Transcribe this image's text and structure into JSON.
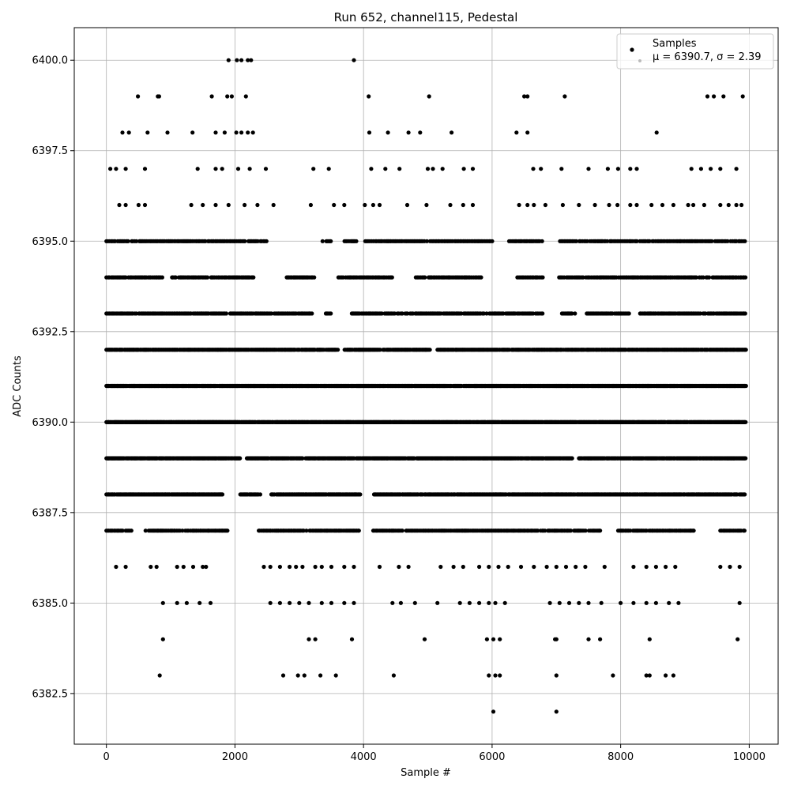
{
  "chart_data": {
    "type": "scatter",
    "title": "Run 652, channel115, Pedestal",
    "xlabel": "Sample #",
    "ylabel": "ADC Counts",
    "xlim": [
      -500,
      10450
    ],
    "ylim": [
      6381.1,
      6400.9
    ],
    "xticks": [
      0,
      2000,
      4000,
      6000,
      8000,
      10000
    ],
    "xtick_labels": [
      "0",
      "2000",
      "4000",
      "6000",
      "8000",
      "10000"
    ],
    "yticks": [
      6382.5,
      6385.0,
      6387.5,
      6390.0,
      6392.5,
      6395.0,
      6397.5,
      6400.0
    ],
    "ytick_labels": [
      "6382.5",
      "6385.0",
      "6387.5",
      "6390.0",
      "6392.5",
      "6395.0",
      "6397.5",
      "6400.0"
    ],
    "grid": true,
    "legend_position": "top-right",
    "series": [
      {
        "name": "Samples",
        "color": "#000000",
        "x_range": [
          0,
          9950
        ],
        "mean": 6390.7,
        "sigma": 2.39
      }
    ],
    "legend_stats": "μ = 6390.7, σ = 2.39",
    "sparse_points": [
      {
        "x": 1900,
        "y": 6400
      },
      {
        "x": 2030,
        "y": 6400
      },
      {
        "x": 2100,
        "y": 6400
      },
      {
        "x": 2200,
        "y": 6400
      },
      {
        "x": 2250,
        "y": 6400
      },
      {
        "x": 3850,
        "y": 6400
      },
      {
        "x": 490,
        "y": 6399
      },
      {
        "x": 800,
        "y": 6399
      },
      {
        "x": 820,
        "y": 6399
      },
      {
        "x": 1640,
        "y": 6399
      },
      {
        "x": 1880,
        "y": 6399
      },
      {
        "x": 1950,
        "y": 6399
      },
      {
        "x": 2170,
        "y": 6399
      },
      {
        "x": 4080,
        "y": 6399
      },
      {
        "x": 5020,
        "y": 6399
      },
      {
        "x": 6500,
        "y": 6399
      },
      {
        "x": 6550,
        "y": 6399
      },
      {
        "x": 7130,
        "y": 6399
      },
      {
        "x": 9350,
        "y": 6399
      },
      {
        "x": 9450,
        "y": 6399
      },
      {
        "x": 9600,
        "y": 6399
      },
      {
        "x": 9900,
        "y": 6399
      },
      {
        "x": 250,
        "y": 6398
      },
      {
        "x": 350,
        "y": 6398
      },
      {
        "x": 640,
        "y": 6398
      },
      {
        "x": 950,
        "y": 6398
      },
      {
        "x": 1340,
        "y": 6398
      },
      {
        "x": 1700,
        "y": 6398
      },
      {
        "x": 1840,
        "y": 6398
      },
      {
        "x": 2020,
        "y": 6398
      },
      {
        "x": 2100,
        "y": 6398
      },
      {
        "x": 2200,
        "y": 6398
      },
      {
        "x": 2280,
        "y": 6398
      },
      {
        "x": 4090,
        "y": 6398
      },
      {
        "x": 4380,
        "y": 6398
      },
      {
        "x": 4700,
        "y": 6398
      },
      {
        "x": 4880,
        "y": 6398
      },
      {
        "x": 5370,
        "y": 6398
      },
      {
        "x": 6380,
        "y": 6398
      },
      {
        "x": 6550,
        "y": 6398
      },
      {
        "x": 8560,
        "y": 6398
      },
      {
        "x": 60,
        "y": 6397
      },
      {
        "x": 150,
        "y": 6397
      },
      {
        "x": 300,
        "y": 6397
      },
      {
        "x": 600,
        "y": 6397
      },
      {
        "x": 1420,
        "y": 6397
      },
      {
        "x": 1700,
        "y": 6397
      },
      {
        "x": 1800,
        "y": 6397
      },
      {
        "x": 2050,
        "y": 6397
      },
      {
        "x": 2230,
        "y": 6397
      },
      {
        "x": 2480,
        "y": 6397
      },
      {
        "x": 3220,
        "y": 6397
      },
      {
        "x": 3460,
        "y": 6397
      },
      {
        "x": 4120,
        "y": 6397
      },
      {
        "x": 4340,
        "y": 6397
      },
      {
        "x": 4560,
        "y": 6397
      },
      {
        "x": 5000,
        "y": 6397
      },
      {
        "x": 5080,
        "y": 6397
      },
      {
        "x": 5230,
        "y": 6397
      },
      {
        "x": 5560,
        "y": 6397
      },
      {
        "x": 5700,
        "y": 6397
      },
      {
        "x": 6640,
        "y": 6397
      },
      {
        "x": 6760,
        "y": 6397
      },
      {
        "x": 7080,
        "y": 6397
      },
      {
        "x": 7500,
        "y": 6397
      },
      {
        "x": 7800,
        "y": 6397
      },
      {
        "x": 7960,
        "y": 6397
      },
      {
        "x": 8150,
        "y": 6397
      },
      {
        "x": 8250,
        "y": 6397
      },
      {
        "x": 9100,
        "y": 6397
      },
      {
        "x": 9250,
        "y": 6397
      },
      {
        "x": 9400,
        "y": 6397
      },
      {
        "x": 9550,
        "y": 6397
      },
      {
        "x": 9800,
        "y": 6397
      },
      {
        "x": 200,
        "y": 6396
      },
      {
        "x": 300,
        "y": 6396
      },
      {
        "x": 500,
        "y": 6396
      },
      {
        "x": 600,
        "y": 6396
      },
      {
        "x": 1320,
        "y": 6396
      },
      {
        "x": 1500,
        "y": 6396
      },
      {
        "x": 1700,
        "y": 6396
      },
      {
        "x": 1900,
        "y": 6396
      },
      {
        "x": 2150,
        "y": 6396
      },
      {
        "x": 2350,
        "y": 6396
      },
      {
        "x": 2600,
        "y": 6396
      },
      {
        "x": 3180,
        "y": 6396
      },
      {
        "x": 3540,
        "y": 6396
      },
      {
        "x": 3700,
        "y": 6396
      },
      {
        "x": 4020,
        "y": 6396
      },
      {
        "x": 4150,
        "y": 6396
      },
      {
        "x": 4250,
        "y": 6396
      },
      {
        "x": 4680,
        "y": 6396
      },
      {
        "x": 4980,
        "y": 6396
      },
      {
        "x": 5350,
        "y": 6396
      },
      {
        "x": 5550,
        "y": 6396
      },
      {
        "x": 5700,
        "y": 6396
      },
      {
        "x": 6420,
        "y": 6396
      },
      {
        "x": 6550,
        "y": 6396
      },
      {
        "x": 6650,
        "y": 6396
      },
      {
        "x": 6830,
        "y": 6396
      },
      {
        "x": 7100,
        "y": 6396
      },
      {
        "x": 7350,
        "y": 6396
      },
      {
        "x": 7600,
        "y": 6396
      },
      {
        "x": 7820,
        "y": 6396
      },
      {
        "x": 7950,
        "y": 6396
      },
      {
        "x": 8150,
        "y": 6396
      },
      {
        "x": 8250,
        "y": 6396
      },
      {
        "x": 8480,
        "y": 6396
      },
      {
        "x": 8650,
        "y": 6396
      },
      {
        "x": 8820,
        "y": 6396
      },
      {
        "x": 9050,
        "y": 6396
      },
      {
        "x": 9130,
        "y": 6396
      },
      {
        "x": 9300,
        "y": 6396
      },
      {
        "x": 9550,
        "y": 6396
      },
      {
        "x": 9680,
        "y": 6396
      },
      {
        "x": 9800,
        "y": 6396
      },
      {
        "x": 9880,
        "y": 6396
      },
      {
        "x": 150,
        "y": 6386
      },
      {
        "x": 300,
        "y": 6386
      },
      {
        "x": 690,
        "y": 6386
      },
      {
        "x": 780,
        "y": 6386
      },
      {
        "x": 1100,
        "y": 6386
      },
      {
        "x": 1200,
        "y": 6386
      },
      {
        "x": 1350,
        "y": 6386
      },
      {
        "x": 1500,
        "y": 6386
      },
      {
        "x": 1550,
        "y": 6386
      },
      {
        "x": 2450,
        "y": 6386
      },
      {
        "x": 2550,
        "y": 6386
      },
      {
        "x": 2700,
        "y": 6386
      },
      {
        "x": 2850,
        "y": 6386
      },
      {
        "x": 2950,
        "y": 6386
      },
      {
        "x": 3050,
        "y": 6386
      },
      {
        "x": 3250,
        "y": 6386
      },
      {
        "x": 3350,
        "y": 6386
      },
      {
        "x": 3500,
        "y": 6386
      },
      {
        "x": 3700,
        "y": 6386
      },
      {
        "x": 3850,
        "y": 6386
      },
      {
        "x": 4250,
        "y": 6386
      },
      {
        "x": 4550,
        "y": 6386
      },
      {
        "x": 4700,
        "y": 6386
      },
      {
        "x": 5200,
        "y": 6386
      },
      {
        "x": 5400,
        "y": 6386
      },
      {
        "x": 5550,
        "y": 6386
      },
      {
        "x": 5800,
        "y": 6386
      },
      {
        "x": 5950,
        "y": 6386
      },
      {
        "x": 6100,
        "y": 6386
      },
      {
        "x": 6250,
        "y": 6386
      },
      {
        "x": 6450,
        "y": 6386
      },
      {
        "x": 6650,
        "y": 6386
      },
      {
        "x": 6850,
        "y": 6386
      },
      {
        "x": 7000,
        "y": 6386
      },
      {
        "x": 7150,
        "y": 6386
      },
      {
        "x": 7300,
        "y": 6386
      },
      {
        "x": 7450,
        "y": 6386
      },
      {
        "x": 7750,
        "y": 6386
      },
      {
        "x": 8200,
        "y": 6386
      },
      {
        "x": 8400,
        "y": 6386
      },
      {
        "x": 8550,
        "y": 6386
      },
      {
        "x": 8700,
        "y": 6386
      },
      {
        "x": 8850,
        "y": 6386
      },
      {
        "x": 9550,
        "y": 6386
      },
      {
        "x": 9700,
        "y": 6386
      },
      {
        "x": 9850,
        "y": 6386
      },
      {
        "x": 880,
        "y": 6385
      },
      {
        "x": 1100,
        "y": 6385
      },
      {
        "x": 1250,
        "y": 6385
      },
      {
        "x": 1450,
        "y": 6385
      },
      {
        "x": 1620,
        "y": 6385
      },
      {
        "x": 2550,
        "y": 6385
      },
      {
        "x": 2700,
        "y": 6385
      },
      {
        "x": 2850,
        "y": 6385
      },
      {
        "x": 3000,
        "y": 6385
      },
      {
        "x": 3150,
        "y": 6385
      },
      {
        "x": 3350,
        "y": 6385
      },
      {
        "x": 3500,
        "y": 6385
      },
      {
        "x": 3700,
        "y": 6385
      },
      {
        "x": 3850,
        "y": 6385
      },
      {
        "x": 4450,
        "y": 6385
      },
      {
        "x": 4580,
        "y": 6385
      },
      {
        "x": 4800,
        "y": 6385
      },
      {
        "x": 5150,
        "y": 6385
      },
      {
        "x": 5500,
        "y": 6385
      },
      {
        "x": 5650,
        "y": 6385
      },
      {
        "x": 5800,
        "y": 6385
      },
      {
        "x": 5950,
        "y": 6385
      },
      {
        "x": 6050,
        "y": 6385
      },
      {
        "x": 6200,
        "y": 6385
      },
      {
        "x": 6900,
        "y": 6385
      },
      {
        "x": 7050,
        "y": 6385
      },
      {
        "x": 7200,
        "y": 6385
      },
      {
        "x": 7350,
        "y": 6385
      },
      {
        "x": 7500,
        "y": 6385
      },
      {
        "x": 7700,
        "y": 6385
      },
      {
        "x": 8000,
        "y": 6385
      },
      {
        "x": 8200,
        "y": 6385
      },
      {
        "x": 8400,
        "y": 6385
      },
      {
        "x": 8550,
        "y": 6385
      },
      {
        "x": 8750,
        "y": 6385
      },
      {
        "x": 8900,
        "y": 6385
      },
      {
        "x": 9850,
        "y": 6385
      },
      {
        "x": 880,
        "y": 6384
      },
      {
        "x": 3150,
        "y": 6384
      },
      {
        "x": 3250,
        "y": 6384
      },
      {
        "x": 3820,
        "y": 6384
      },
      {
        "x": 4950,
        "y": 6384
      },
      {
        "x": 5920,
        "y": 6384
      },
      {
        "x": 6020,
        "y": 6384
      },
      {
        "x": 6120,
        "y": 6384
      },
      {
        "x": 6980,
        "y": 6384
      },
      {
        "x": 7000,
        "y": 6384
      },
      {
        "x": 7500,
        "y": 6384
      },
      {
        "x": 7680,
        "y": 6384
      },
      {
        "x": 8450,
        "y": 6384
      },
      {
        "x": 9820,
        "y": 6384
      },
      {
        "x": 830,
        "y": 6383
      },
      {
        "x": 2750,
        "y": 6383
      },
      {
        "x": 2980,
        "y": 6383
      },
      {
        "x": 3080,
        "y": 6383
      },
      {
        "x": 3330,
        "y": 6383
      },
      {
        "x": 3570,
        "y": 6383
      },
      {
        "x": 4470,
        "y": 6383
      },
      {
        "x": 5950,
        "y": 6383
      },
      {
        "x": 6050,
        "y": 6383
      },
      {
        "x": 6120,
        "y": 6383
      },
      {
        "x": 7000,
        "y": 6383
      },
      {
        "x": 7880,
        "y": 6383
      },
      {
        "x": 8400,
        "y": 6383
      },
      {
        "x": 8450,
        "y": 6383
      },
      {
        "x": 8700,
        "y": 6383
      },
      {
        "x": 8820,
        "y": 6383
      },
      {
        "x": 6020,
        "y": 6382
      },
      {
        "x": 7000,
        "y": 6382
      }
    ],
    "dense_bands": [
      {
        "y": 6395,
        "gaps": [
          [
            2500,
            3350
          ],
          [
            3500,
            3700
          ],
          [
            3900,
            4020
          ],
          [
            6020,
            6260
          ],
          [
            6800,
            7050
          ]
        ],
        "stride": 22
      },
      {
        "y": 6394,
        "gaps": [
          [
            880,
            1020
          ],
          [
            2300,
            2800
          ],
          [
            3250,
            3600
          ],
          [
            4450,
            4800
          ],
          [
            5850,
            6380
          ],
          [
            6800,
            7020
          ]
        ],
        "stride": 22
      },
      {
        "y": 6393,
        "gaps": [
          [
            3200,
            3400
          ],
          [
            3500,
            3800
          ],
          [
            6800,
            7080
          ],
          [
            7300,
            7450
          ],
          [
            8150,
            8300
          ]
        ],
        "stride": 18
      },
      {
        "y": 6392,
        "gaps": [
          [
            3600,
            3700
          ],
          [
            5050,
            5150
          ]
        ],
        "stride": 12
      },
      {
        "y": 6391,
        "gaps": [],
        "stride": 8
      },
      {
        "y": 6390,
        "gaps": [],
        "stride": 7
      },
      {
        "y": 6389,
        "gaps": [
          [
            2080,
            2180
          ],
          [
            7250,
            7350
          ]
        ],
        "stride": 10
      },
      {
        "y": 6388,
        "gaps": [
          [
            1820,
            2080
          ],
          [
            2400,
            2550
          ],
          [
            3950,
            4150
          ]
        ],
        "stride": 14
      },
      {
        "y": 6387,
        "gaps": [
          [
            400,
            600
          ],
          [
            1900,
            2350
          ],
          [
            3950,
            4150
          ],
          [
            7700,
            7950
          ],
          [
            9150,
            9550
          ]
        ],
        "stride": 20
      }
    ]
  }
}
